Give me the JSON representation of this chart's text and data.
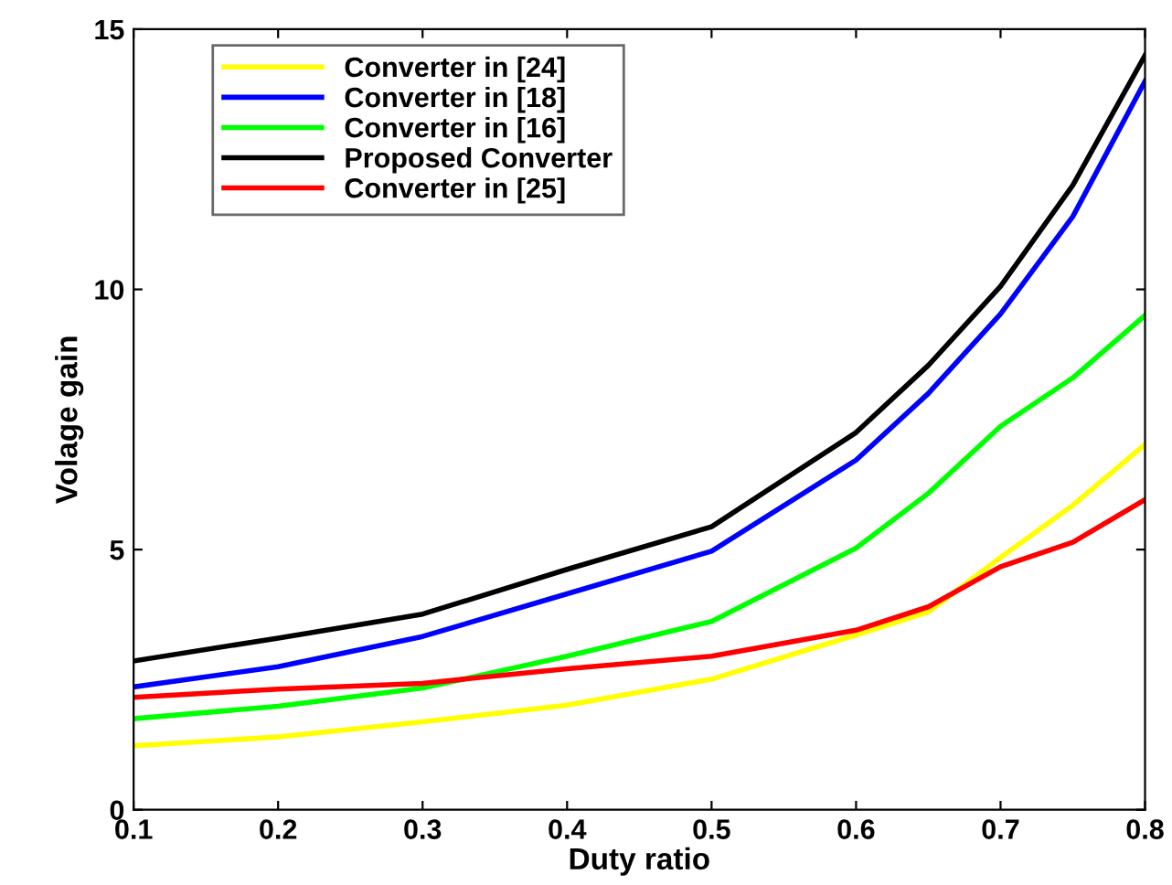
{
  "chart_data": {
    "type": "line",
    "xlabel": "Duty ratio",
    "ylabel": "Volage gain",
    "x": [
      0.1,
      0.2,
      0.3,
      0.4,
      0.5,
      0.6,
      0.65,
      0.7,
      0.75,
      0.8
    ],
    "series": [
      {
        "name": "Converter in [24]",
        "color": "#ffff00",
        "values": [
          1.23,
          1.4,
          1.69,
          2.01,
          2.51,
          3.36,
          3.8,
          4.85,
          5.85,
          7.02
        ]
      },
      {
        "name": "Converter in [18]",
        "color": "#0000ff",
        "values": [
          2.36,
          2.75,
          3.33,
          4.15,
          4.97,
          6.72,
          8.0,
          9.53,
          11.4,
          14.0
        ]
      },
      {
        "name": "Converter in [16]",
        "color": "#00ff00",
        "values": [
          1.75,
          1.99,
          2.34,
          2.95,
          3.62,
          5.03,
          6.08,
          7.37,
          8.3,
          9.5
        ]
      },
      {
        "name": "Proposed Converter",
        "color": "#000000",
        "values": [
          2.86,
          3.3,
          3.76,
          4.62,
          5.44,
          7.25,
          8.54,
          10.06,
          12.0,
          14.5
        ]
      },
      {
        "name": "Converter in [25]",
        "color": "#ff0000",
        "values": [
          2.16,
          2.32,
          2.43,
          2.71,
          2.95,
          3.45,
          3.9,
          4.67,
          5.14,
          5.96
        ]
      }
    ],
    "xlim": [
      0.1,
      0.8
    ],
    "ylim": [
      0,
      15
    ],
    "xticks": [
      0.1,
      0.2,
      0.3,
      0.4,
      0.5,
      0.6,
      0.7,
      0.8
    ],
    "yticks": [
      0,
      5,
      10,
      15
    ],
    "grid": false,
    "legend": "top left",
    "marker": "none",
    "line_style": "solid"
  }
}
